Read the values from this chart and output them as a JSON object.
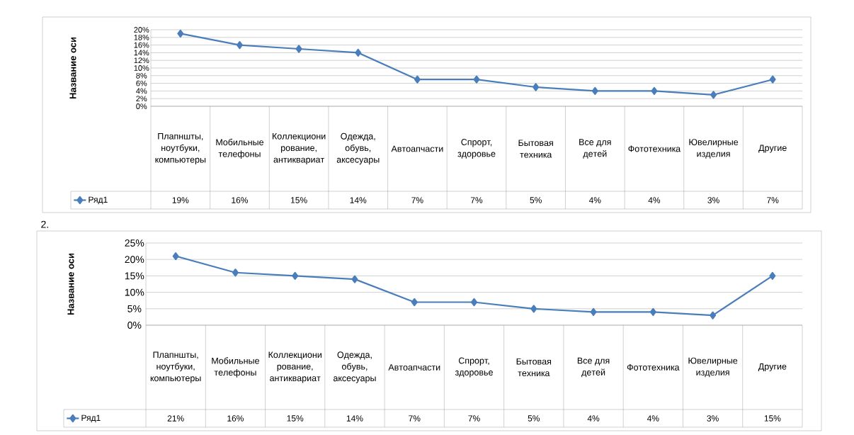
{
  "chart_data": [
    {
      "type": "line",
      "categories": [
        "Плапншты, ноутбуки, компьютеры",
        "Мобильные телефоны",
        "Коллекционирование, антиквариат",
        "Одежда, обувь, аксесуары",
        "Автоапчасти",
        "Спрорт, здоровье",
        "Бытовая техника",
        "Все для детей",
        "Фототехника",
        "Ювелирные изделия",
        "Другие"
      ],
      "series": [
        {
          "name": "Ряд1",
          "color": "#4a7ebb",
          "values": [
            19,
            16,
            15,
            14,
            7,
            7,
            5,
            4,
            4,
            3,
            7
          ],
          "value_labels": [
            "19%",
            "16%",
            "15%",
            "14%",
            "7%",
            "7%",
            "5%",
            "4%",
            "4%",
            "3%",
            "7%"
          ]
        }
      ],
      "ylabel": "Название оси",
      "ylim": [
        0,
        20
      ],
      "yticks": [
        {
          "value": 0,
          "label": "0%"
        },
        {
          "value": 2,
          "label": "2%"
        },
        {
          "value": 4,
          "label": "4%"
        },
        {
          "value": 6,
          "label": "6%"
        },
        {
          "value": 8,
          "label": "8%"
        },
        {
          "value": 10,
          "label": "10%"
        },
        {
          "value": 12,
          "label": "12%"
        },
        {
          "value": 14,
          "label": "14%"
        },
        {
          "value": 16,
          "label": "16%"
        },
        {
          "value": 18,
          "label": "18%"
        },
        {
          "value": 20,
          "label": "20%"
        }
      ],
      "grid": "y",
      "legend": "bottom",
      "marker": "diamond",
      "line_style": "solid"
    },
    {
      "type": "line",
      "categories": [
        "Плапншты, ноутбуки, компьютеры",
        "Мобильные телефоны",
        "Коллекционирование, антиквариат",
        "Одежда, обувь, аксесуары",
        "Автоапчасти",
        "Спрорт, здоровье",
        "Бытовая техника",
        "Все для детей",
        "Фототехника",
        "Ювелирные изделия",
        "Другие"
      ],
      "series": [
        {
          "name": "Ряд1",
          "color": "#4a7ebb",
          "values": [
            21,
            16,
            15,
            14,
            7,
            7,
            5,
            4,
            4,
            3,
            15
          ],
          "value_labels": [
            "21%",
            "16%",
            "15%",
            "14%",
            "7%",
            "7%",
            "5%",
            "4%",
            "4%",
            "3%",
            "15%"
          ]
        }
      ],
      "ylabel": "Название оси",
      "ylim": [
        0,
        25
      ],
      "yticks": [
        {
          "value": 0,
          "label": "0%"
        },
        {
          "value": 5,
          "label": "5%"
        },
        {
          "value": 10,
          "label": "10%"
        },
        {
          "value": 15,
          "label": "15%"
        },
        {
          "value": 20,
          "label": "20%"
        },
        {
          "value": 25,
          "label": "25%"
        }
      ],
      "grid": "y",
      "legend": "bottom",
      "marker": "diamond",
      "line_style": "solid",
      "annotations": [
        "2."
      ]
    }
  ]
}
